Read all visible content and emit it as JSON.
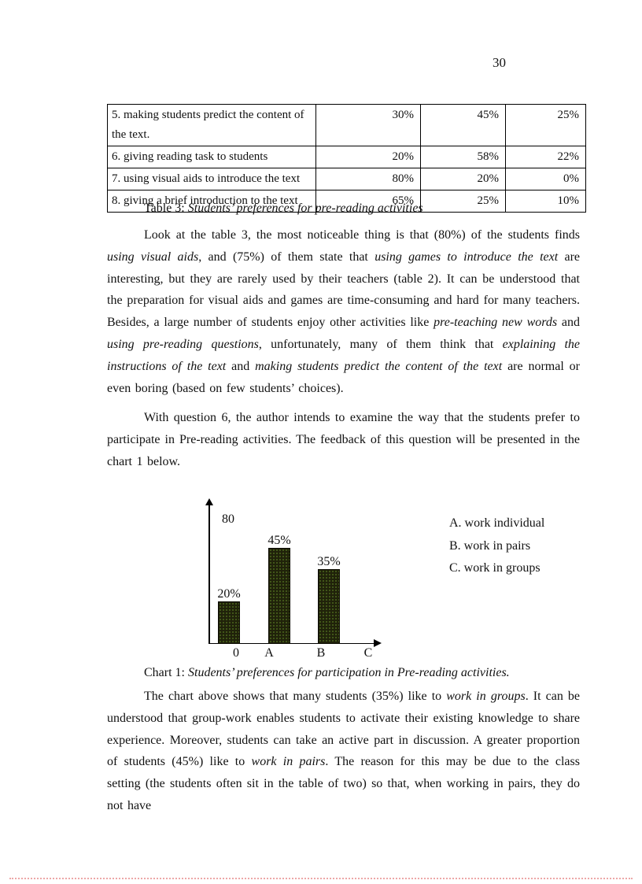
{
  "page": {
    "number": "30"
  },
  "table": {
    "rows": [
      {
        "activity": "5. making students predict the content of the text.",
        "interesting": "30%",
        "normal": "45%",
        "boring": "25%"
      },
      {
        "activity": "6. giving reading task to students",
        "interesting": "20%",
        "normal": "58%",
        "boring": "22%"
      },
      {
        "activity": "7. using visual aids to introduce the text",
        "interesting": "80%",
        "normal": "20%",
        "boring": "0%"
      },
      {
        "activity": "8. giving a brief introduction to the text",
        "interesting": "65%",
        "normal": "25%",
        "boring": "10%"
      }
    ]
  },
  "table_caption": {
    "prefix": "Table 3: ",
    "italic": "Students’ preferences for pre-reading activities"
  },
  "chart_caption": {
    "prefix": "Chart 1: ",
    "italic": "Students’ preferences for participation in Pre-reading activities."
  },
  "paragraphs": {
    "p1": {
      "segments": [
        {
          "t": "Look at the table 3, the most noticeable thing is that (80%) of the students finds "
        },
        {
          "t": "using visual aids",
          "i": true
        },
        {
          "t": ", and (75%) of them state that "
        },
        {
          "t": "using games to introduce the text",
          "i": true
        },
        {
          "t": " are interesting, but they are rarely used by their teachers (table 2). It can be understood that the preparation for visual aids and games are time-consuming and hard for many teachers. Besides, a large number of students enjoy other activities like "
        },
        {
          "t": "pre-teaching new words",
          "i": true
        },
        {
          "t": " and "
        },
        {
          "t": "using pre-reading questions",
          "i": true
        },
        {
          "t": ", unfortunately, many of them think that "
        },
        {
          "t": "explaining the instructions of the text",
          "i": true
        },
        {
          "t": " and "
        },
        {
          "t": "making students predict the content of the text",
          "i": true
        },
        {
          "t": " are normal or even boring (based on few students’ choices)."
        }
      ]
    },
    "p2": {
      "segments": [
        {
          "t": "With question 6, the author intends to examine the way that the students prefer to participate in Pre-reading activities. The feedback of this question will be presented in the chart 1 below."
        }
      ]
    },
    "p3": {
      "segments": [
        {
          "t": "The chart above shows that many students (35%) like to "
        },
        {
          "t": "work in groups",
          "i": true
        },
        {
          "t": ". It can be understood that group-work enables students to activate their existing knowledge to share experience. Moreover, students can take an active part in discussion. A greater proportion of students (45%) like to "
        },
        {
          "t": "work in pairs",
          "i": true
        },
        {
          "t": ". The reason for this may be due to the class setting (the students often sit in the table of two) so that, when working in pairs, they do not have"
        }
      ]
    }
  },
  "chart_data": {
    "type": "bar",
    "title": "Chart 1: Students’ preferences for participation in Pre-reading activities.",
    "categories": [
      "A",
      "B",
      "C"
    ],
    "values": [
      20,
      45,
      35
    ],
    "bar_labels": [
      "20%",
      "45%",
      "35%"
    ],
    "x_axis_labels": [
      "0",
      "A",
      "B",
      "C"
    ],
    "y_axis_label": "80",
    "ylim": [
      0,
      80
    ],
    "grid": false,
    "legend_position": "right",
    "legend": [
      "A. work individual",
      "B. work in pairs",
      "C. work in groups"
    ],
    "bar_color": "#20220a",
    "bar_dot_color": "#4c681e"
  }
}
